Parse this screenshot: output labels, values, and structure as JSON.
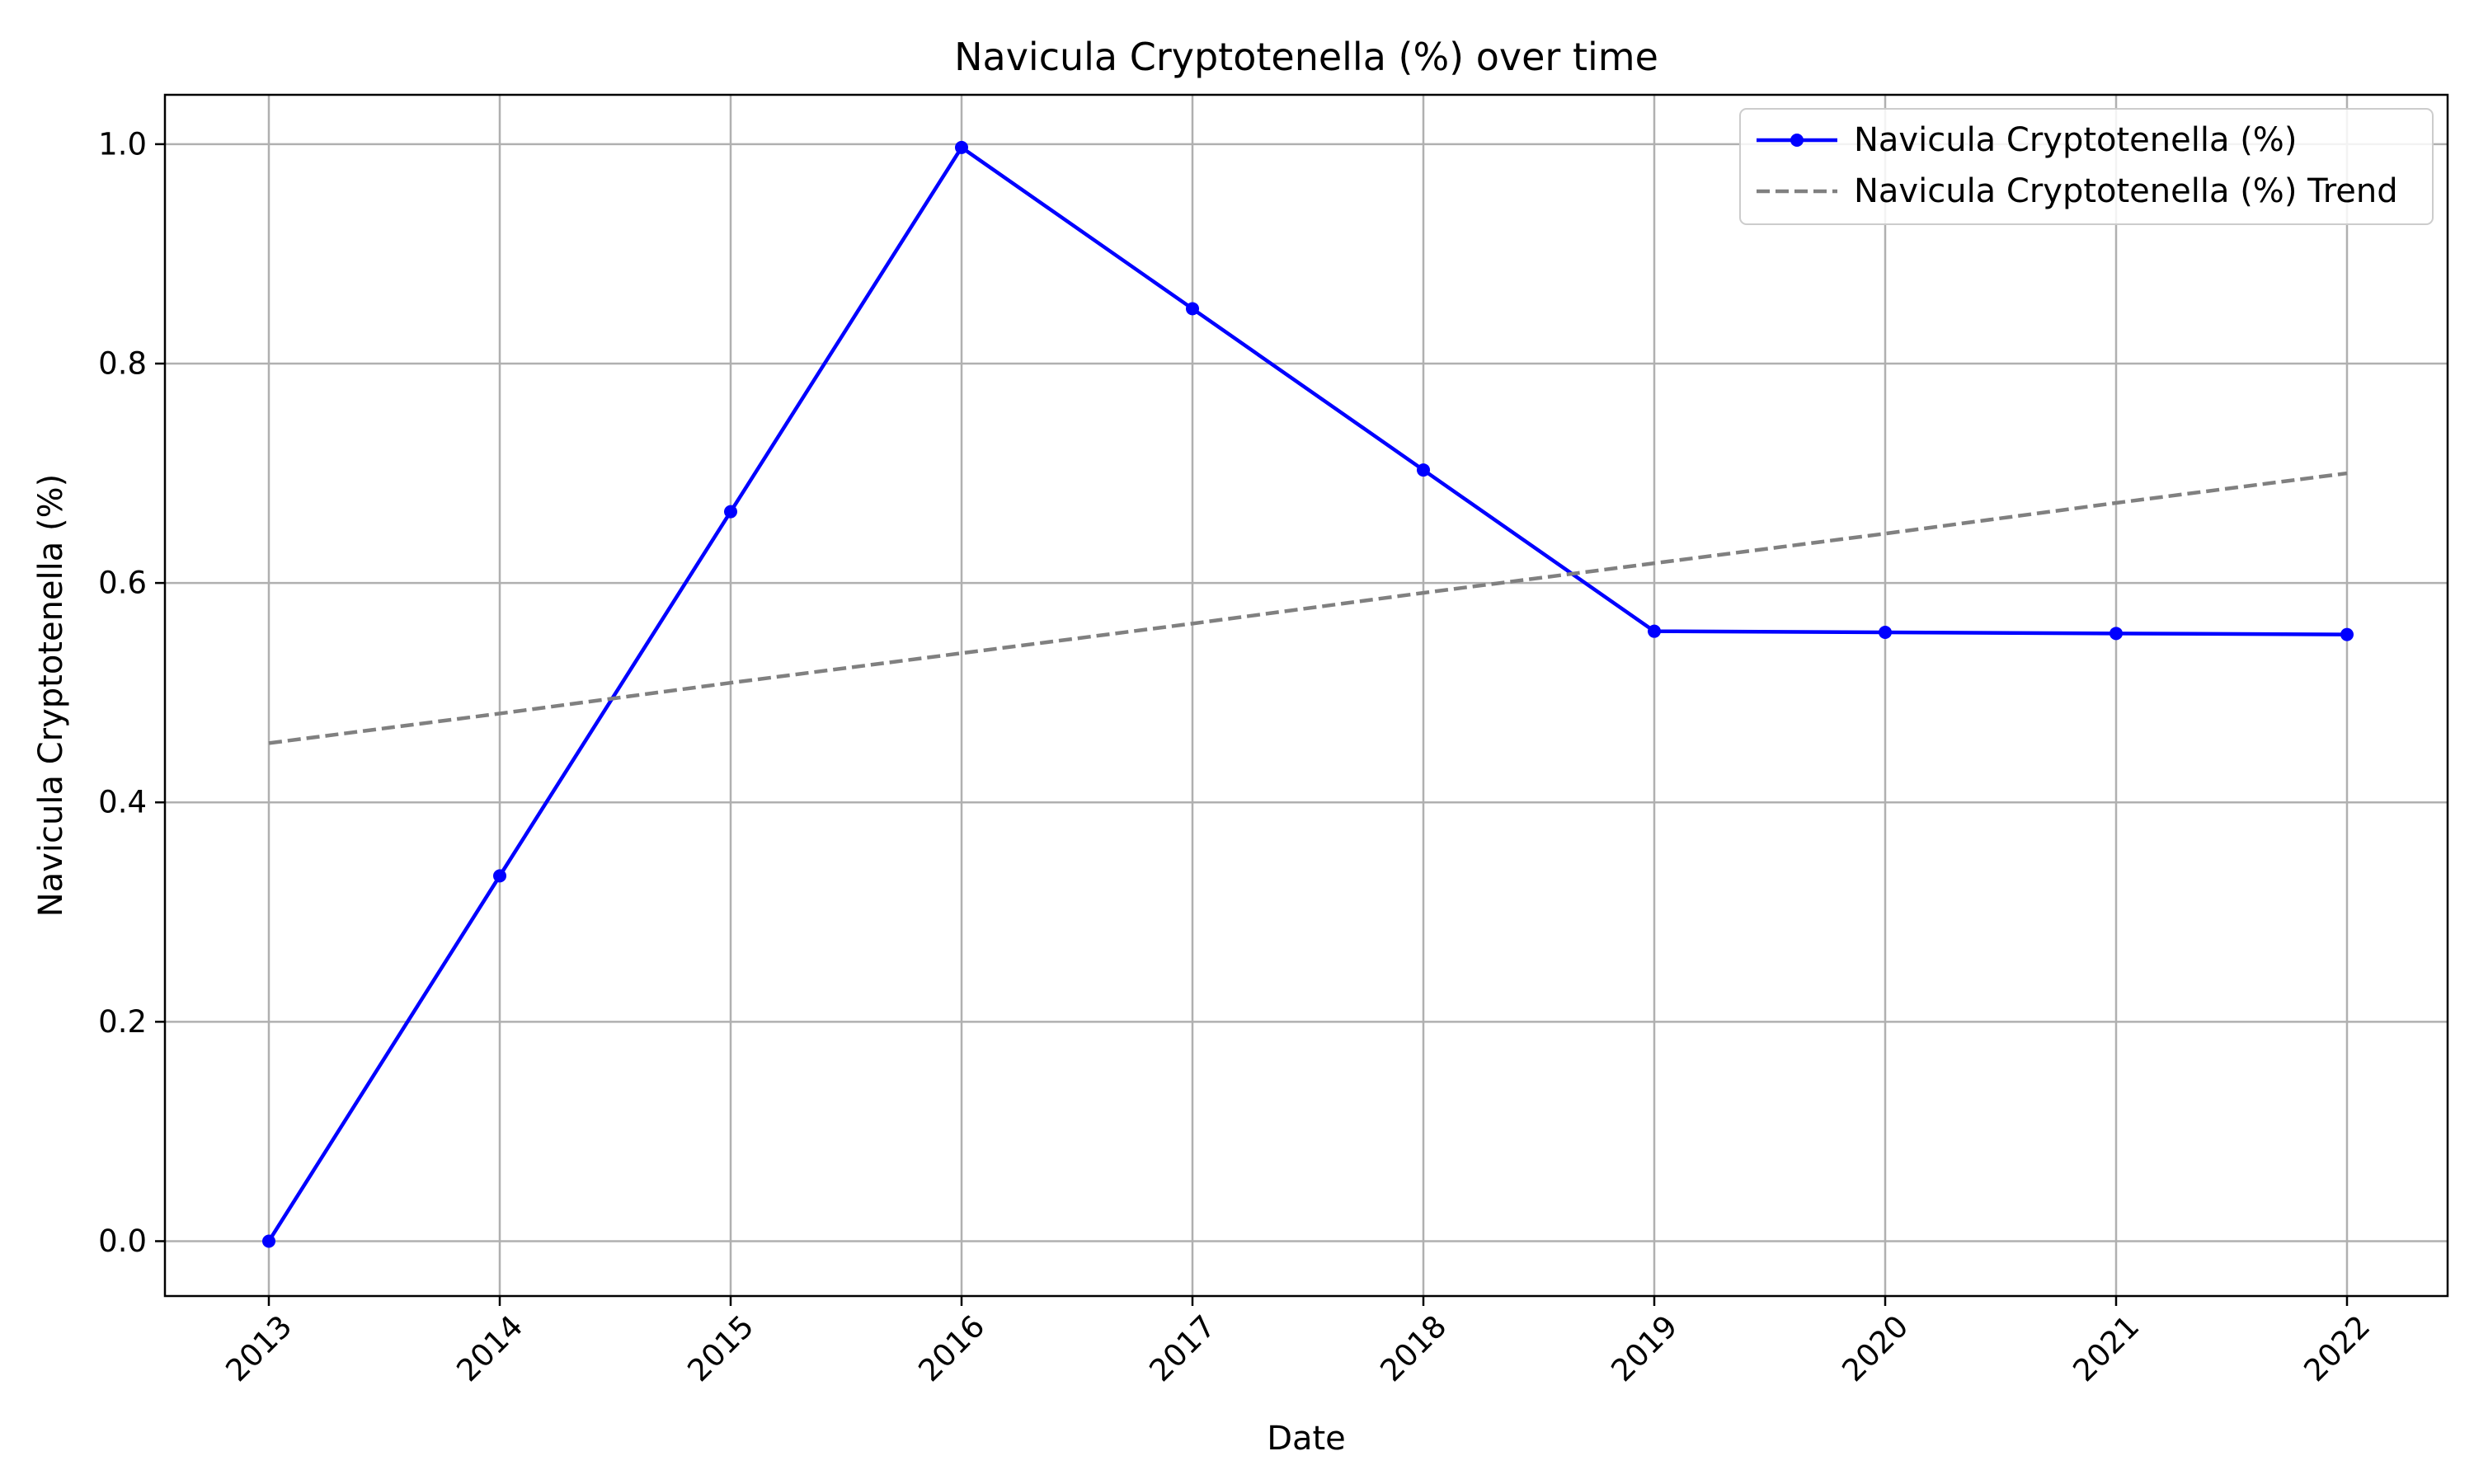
{
  "chart_data": {
    "type": "line",
    "title": "Navicula Cryptotenella (%) over time",
    "xlabel": "Date",
    "ylabel": "Navicula Cryptotenella (%)",
    "x": [
      "2013",
      "2014",
      "2015",
      "2016",
      "2017",
      "2018",
      "2019",
      "2020",
      "2021",
      "2022"
    ],
    "ylim": [
      -0.05,
      1.045
    ],
    "yticks": [
      "0.0",
      "0.2",
      "0.4",
      "0.6",
      "0.8",
      "1.0"
    ],
    "grid": true,
    "legend_position": "top-right",
    "series": [
      {
        "name": "Navicula Cryptotenella (%)",
        "values": [
          0.0,
          0.333,
          0.665,
          0.997,
          0.85,
          0.703,
          0.556,
          0.555,
          0.554,
          0.553
        ],
        "color": "#0000ff",
        "style": "solid",
        "marker": "circle"
      },
      {
        "name": "Navicula Cryptotenella (%) Trend",
        "values": [
          0.454,
          0.481,
          0.509,
          0.536,
          0.563,
          0.591,
          0.618,
          0.645,
          0.673,
          0.7
        ],
        "color": "#808080",
        "style": "dashed",
        "marker": "none"
      }
    ]
  }
}
